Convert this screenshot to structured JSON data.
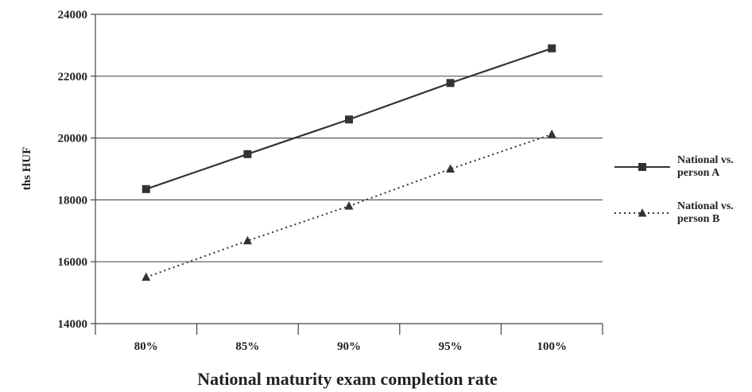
{
  "chart_data": {
    "type": "line",
    "categories": [
      "80%",
      "85%",
      "90%",
      "95%",
      "100%"
    ],
    "series": [
      {
        "name": "National vs. person A",
        "legend_lines": [
          "National vs.",
          "person A"
        ],
        "marker": "square",
        "line_style": "solid",
        "color": "#333333",
        "values": [
          18350,
          19480,
          20600,
          21780,
          22900
        ]
      },
      {
        "name": "National vs. person B",
        "legend_lines": [
          "National vs.",
          "person B"
        ],
        "marker": "triangle",
        "line_style": "dotted",
        "color": "#333333",
        "values": [
          15500,
          16680,
          17800,
          19000,
          20120
        ]
      }
    ],
    "title": "",
    "xlabel": "National maturity exam completion rate",
    "ylabel": "ths HUF",
    "ylim": [
      14000,
      24000
    ],
    "yticks": [
      14000,
      16000,
      18000,
      20000,
      22000,
      24000
    ],
    "grid": true,
    "legend_position": "right"
  }
}
